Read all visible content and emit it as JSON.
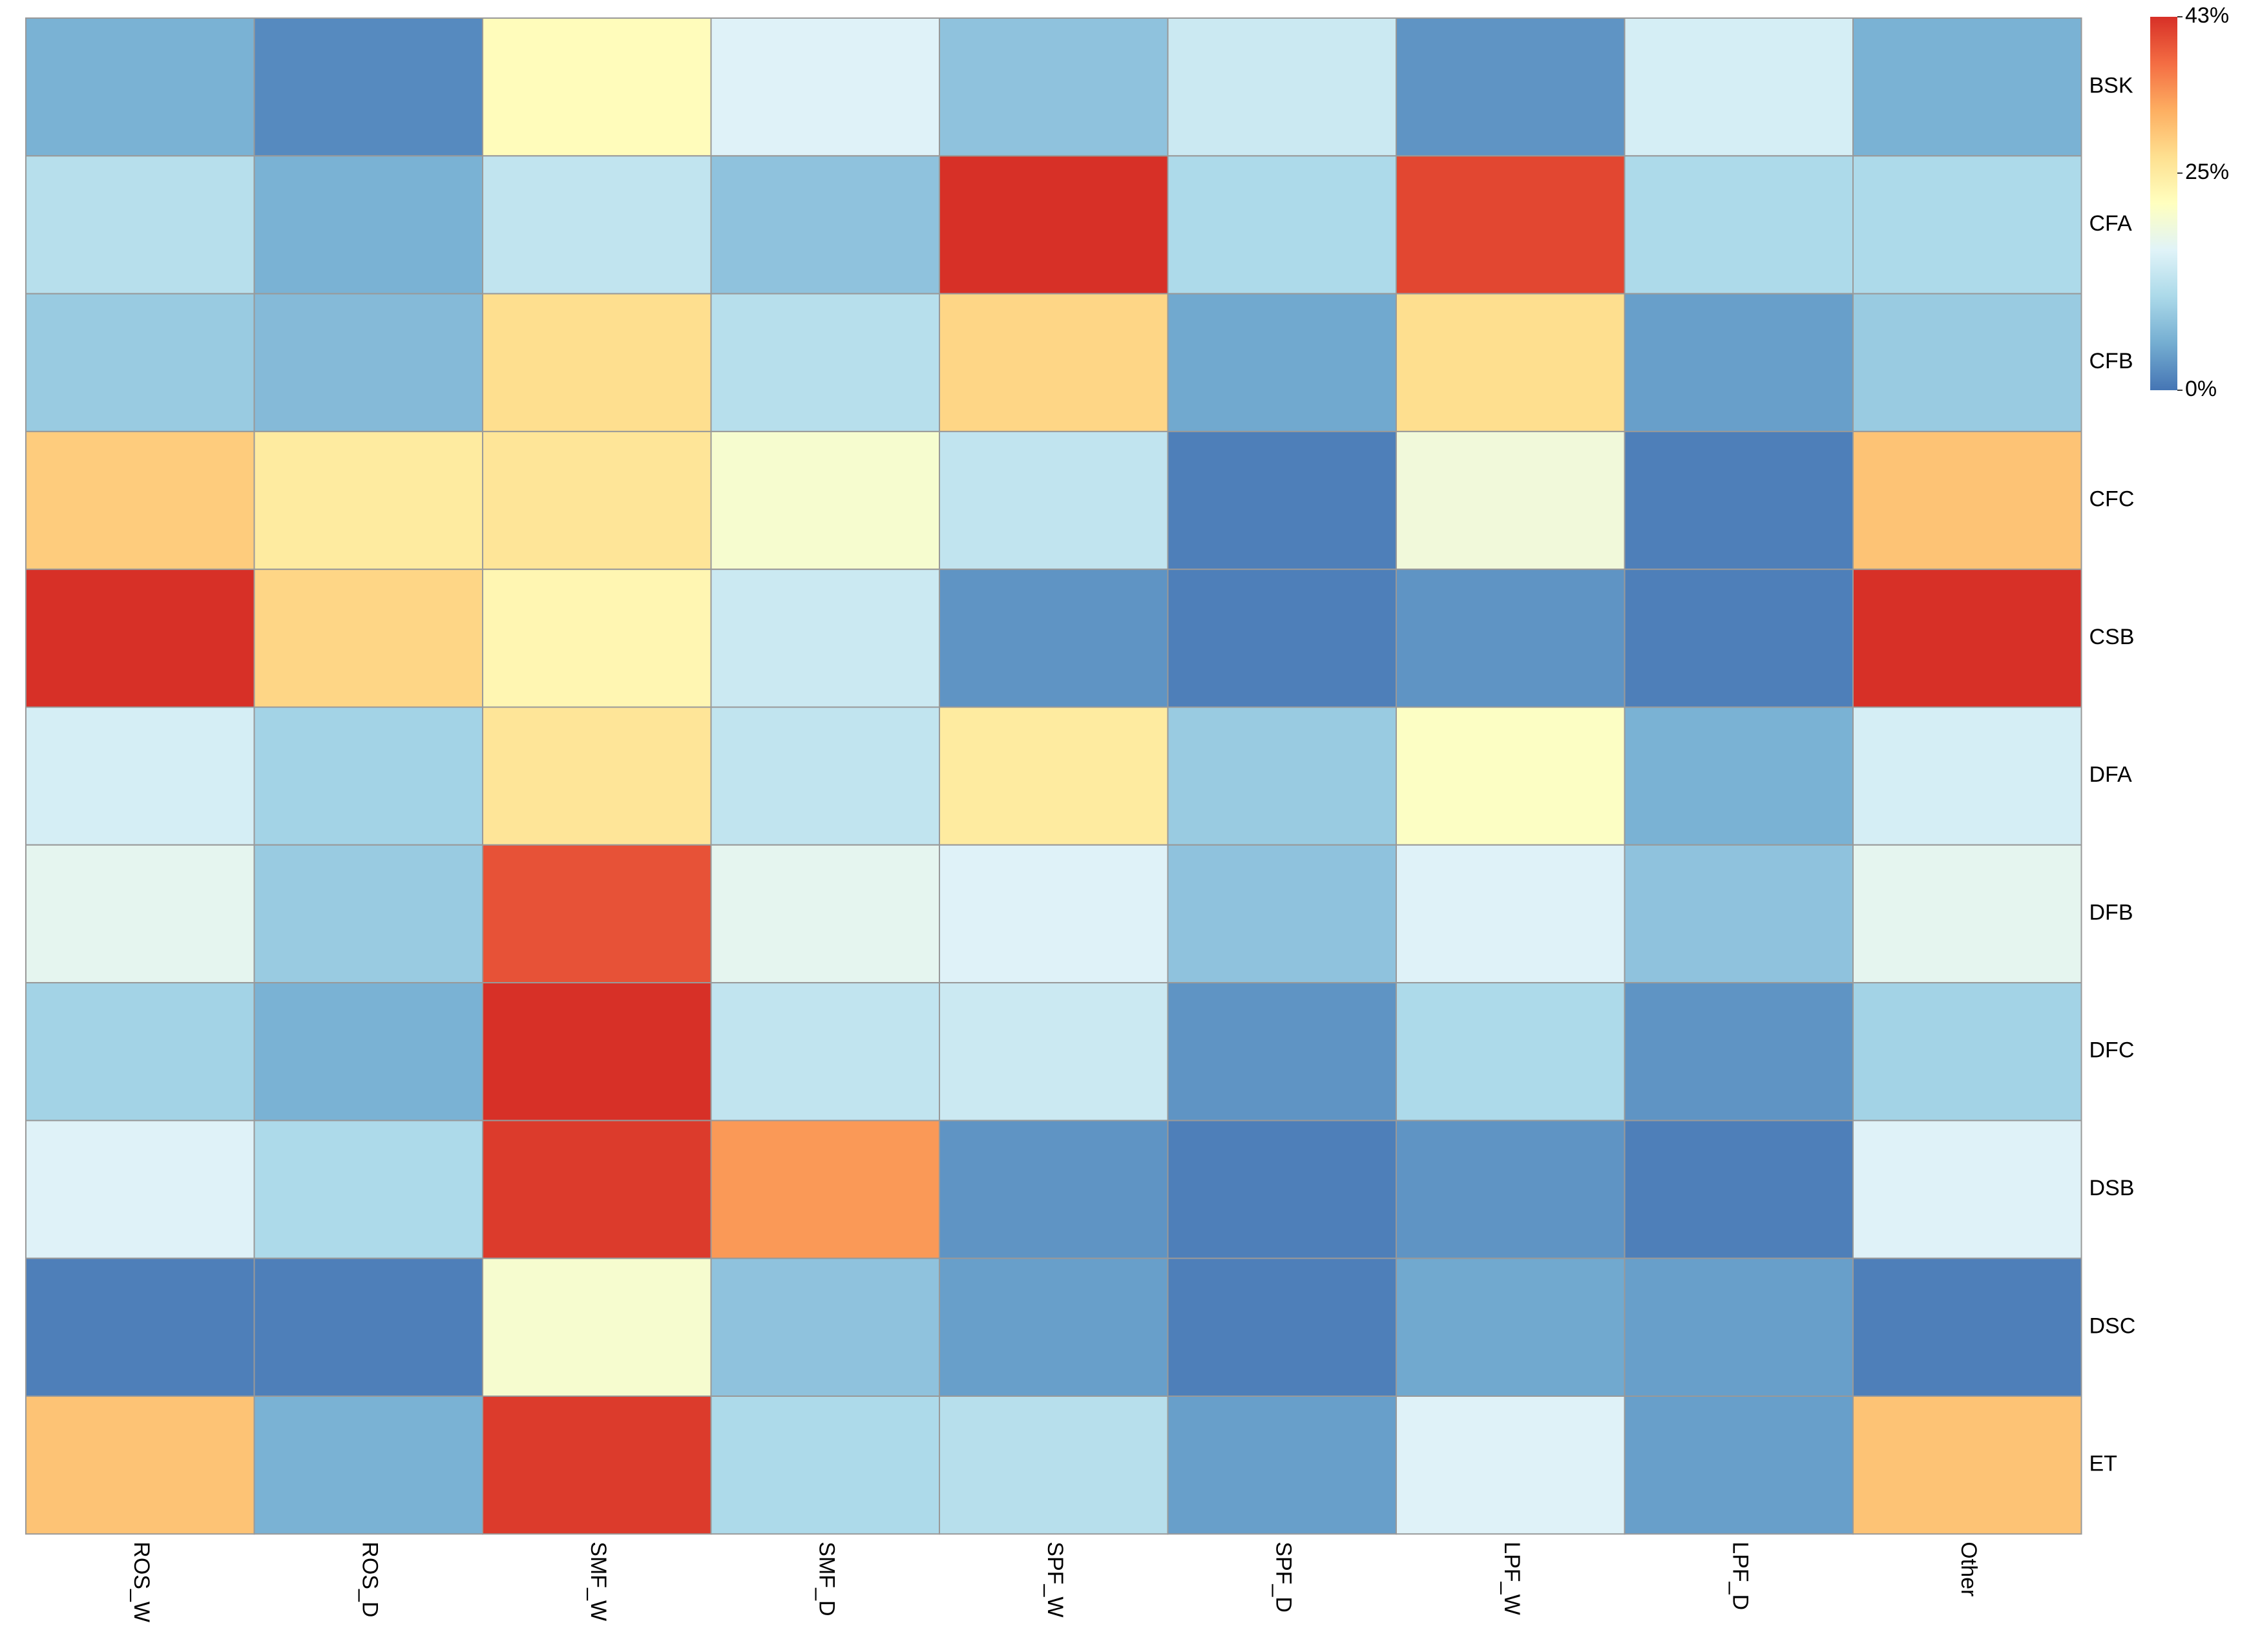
{
  "chart_data": {
    "type": "heatmap",
    "columns": [
      "ROS_W",
      "ROS_D",
      "SMF_W",
      "SMF_D",
      "SPF_W",
      "SPF_D",
      "LPF_W",
      "LPF_D",
      "Other"
    ],
    "rows": [
      "BSK",
      "CFA",
      "CFB",
      "CFC",
      "CSB",
      "DFA",
      "DFB",
      "DFC",
      "DSB",
      "DSC",
      "ET"
    ],
    "values": [
      [
        6,
        2,
        22,
        16,
        8,
        14,
        3,
        15,
        6
      ],
      [
        12,
        6,
        13,
        8,
        43,
        11,
        41,
        11,
        11
      ],
      [
        9,
        7,
        27,
        12,
        28,
        5,
        27,
        4,
        9
      ],
      [
        29,
        25,
        26,
        20,
        13,
        1,
        19,
        1,
        30
      ],
      [
        43,
        28,
        23,
        14,
        3,
        1,
        3,
        1,
        43
      ],
      [
        15,
        10,
        26,
        13,
        25,
        9,
        21,
        6,
        15
      ],
      [
        17,
        9,
        40,
        17,
        16,
        8,
        16,
        8,
        17
      ],
      [
        10,
        6,
        43,
        13,
        14,
        3,
        11,
        3,
        10
      ],
      [
        16,
        11,
        42,
        34,
        3,
        1,
        3,
        1,
        16
      ],
      [
        1,
        1,
        20,
        8,
        4,
        1,
        5,
        4,
        1
      ],
      [
        30,
        6,
        42,
        11,
        12,
        4,
        16,
        4,
        30
      ]
    ],
    "value_range": [
      0,
      43
    ],
    "colorscale": [
      "#4575b4",
      "#74add1",
      "#abd9e9",
      "#e0f3f8",
      "#ffffbf",
      "#fee090",
      "#fdae61",
      "#f46d43",
      "#d73027"
    ],
    "legend": {
      "position": "top-right",
      "labels": [
        {
          "text": "43%",
          "value": 43
        },
        {
          "text": "25%",
          "value": 25
        },
        {
          "text": "0%",
          "value": 0
        }
      ]
    },
    "grid_color": "#999999"
  }
}
